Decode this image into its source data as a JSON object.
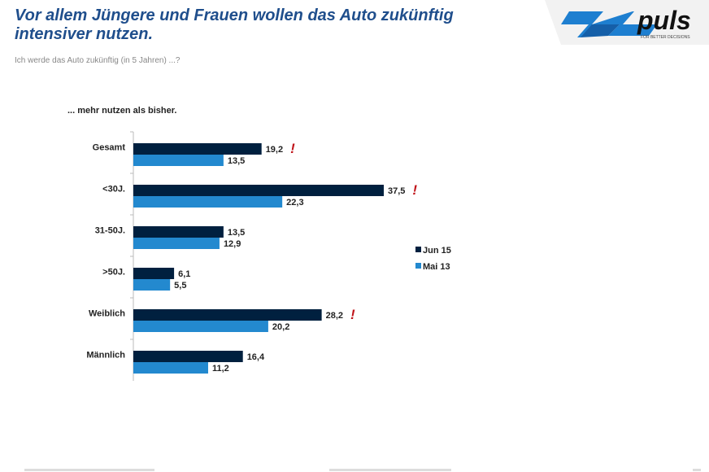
{
  "header": {
    "title_line1": "Vor allem Jüngere und Frauen wollen das Auto zukünftig",
    "title_line2": "intensiver nutzen.",
    "subtitle": "Ich werde das Auto zukünftig (in 5 Jahren) ...?"
  },
  "logo": {
    "brand": "puls",
    "tagline": "FOR BETTER DECISIONS",
    "icon": "x-logo-icon"
  },
  "colors": {
    "jun15": "#00203f",
    "mai13": "#2389cf",
    "accent_title": "#1f4e8c",
    "significance": "#c0141a"
  },
  "chart_data": {
    "type": "bar",
    "orientation": "horizontal",
    "title": "... mehr nutzen als bisher.",
    "categories": [
      "Gesamt",
      "<30J.",
      "31-50J.",
      ">50J.",
      "Weiblich",
      "Männlich"
    ],
    "series": [
      {
        "name": "Jun 15",
        "values": [
          19.2,
          37.5,
          13.5,
          6.1,
          28.2,
          16.4
        ],
        "labels": [
          "19,2",
          "37,5",
          "13,5",
          "6,1",
          "28,2",
          "16,4"
        ]
      },
      {
        "name": "Mai 13",
        "values": [
          13.5,
          22.3,
          12.9,
          5.5,
          20.2,
          11.2
        ],
        "labels": [
          "13,5",
          "22,3",
          "12,9",
          "5,5",
          "20,2",
          "11,2"
        ]
      }
    ],
    "significant": [
      true,
      true,
      false,
      false,
      true,
      false
    ],
    "significance_marker": "!",
    "xlim": [
      0,
      40
    ],
    "legend_position": "right",
    "grid": false
  }
}
